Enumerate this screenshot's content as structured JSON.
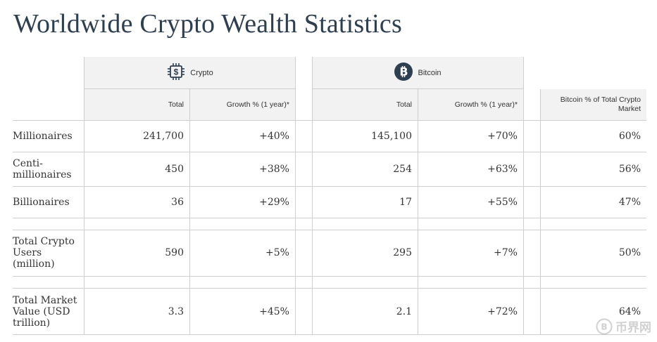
{
  "title": "Worldwide Crypto Wealth Statistics",
  "groups": {
    "crypto": {
      "label": "Crypto",
      "icon": "chip-dollar-icon"
    },
    "bitcoin": {
      "label": "Bitcoin",
      "icon": "bitcoin-icon"
    }
  },
  "subheaders": {
    "total": "Total",
    "growth": "Growth % (1 year)*",
    "btc_share": "Bitcoin % of Total Crypto Market"
  },
  "rows": [
    {
      "label": "Millionaires",
      "crypto_total": "241,700",
      "crypto_growth": "+40%",
      "btc_total": "145,100",
      "btc_growth": "+70%",
      "btc_share": "60%"
    },
    {
      "label": "Centi-\nmillionaires",
      "crypto_total": "450",
      "crypto_growth": "+38%",
      "btc_total": "254",
      "btc_growth": "+63%",
      "btc_share": "56%"
    },
    {
      "label": "Billionaires",
      "crypto_total": "36",
      "crypto_growth": "+29%",
      "btc_total": "17",
      "btc_growth": "+55%",
      "btc_share": "47%"
    },
    {
      "label": "Total Crypto\nUsers\n(million)",
      "crypto_total": "590",
      "crypto_growth": "+5%",
      "btc_total": "295",
      "btc_growth": "+7%",
      "btc_share": "50%"
    },
    {
      "label": "Total Market\nValue (USD\ntrillion)",
      "crypto_total": "3.3",
      "crypto_growth": "+45%",
      "btc_total": "2.1",
      "btc_growth": "+72%",
      "btc_share": "64%"
    }
  ],
  "watermark": "币界网"
}
